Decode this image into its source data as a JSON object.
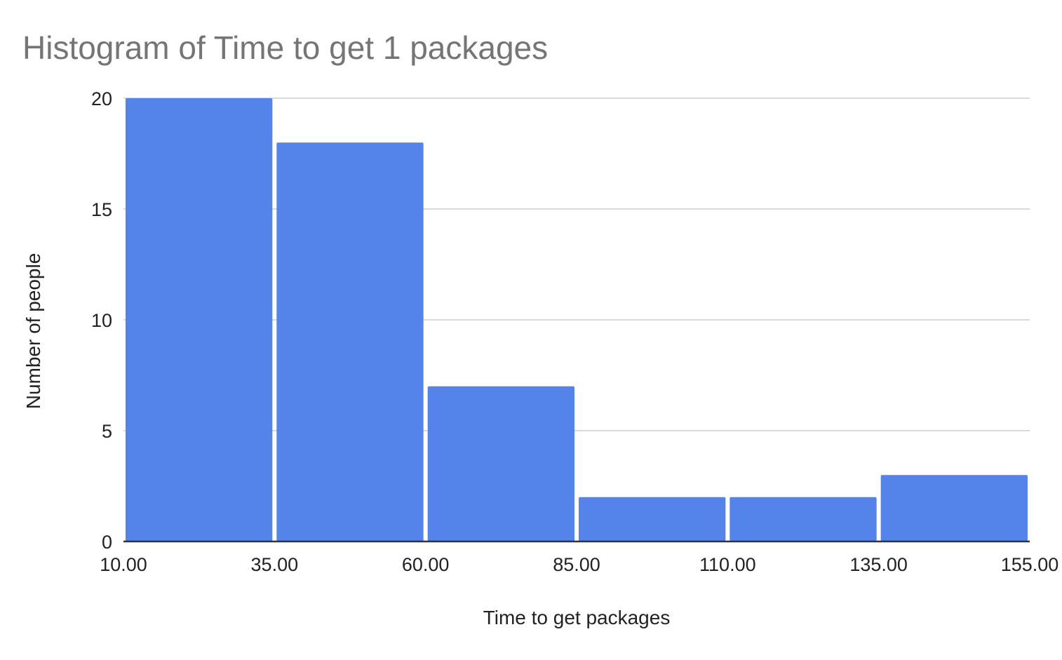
{
  "chart_data": {
    "type": "bar",
    "title": "Histogram of Time to get 1 packages",
    "xlabel": "Time to get packages",
    "ylabel": "Number of people",
    "bin_edges": [
      10,
      35,
      60,
      85,
      110,
      135,
      155
    ],
    "x_tick_labels": [
      "10.00",
      "35.00",
      "60.00",
      "85.00",
      "110.00",
      "135.00",
      "155.00"
    ],
    "values": [
      20,
      18,
      7,
      2,
      2,
      3
    ],
    "ylim": [
      0,
      20
    ],
    "y_ticks": [
      0,
      5,
      10,
      15,
      20
    ],
    "grid": true,
    "legend": "none",
    "bar_color": "#5483e9"
  }
}
